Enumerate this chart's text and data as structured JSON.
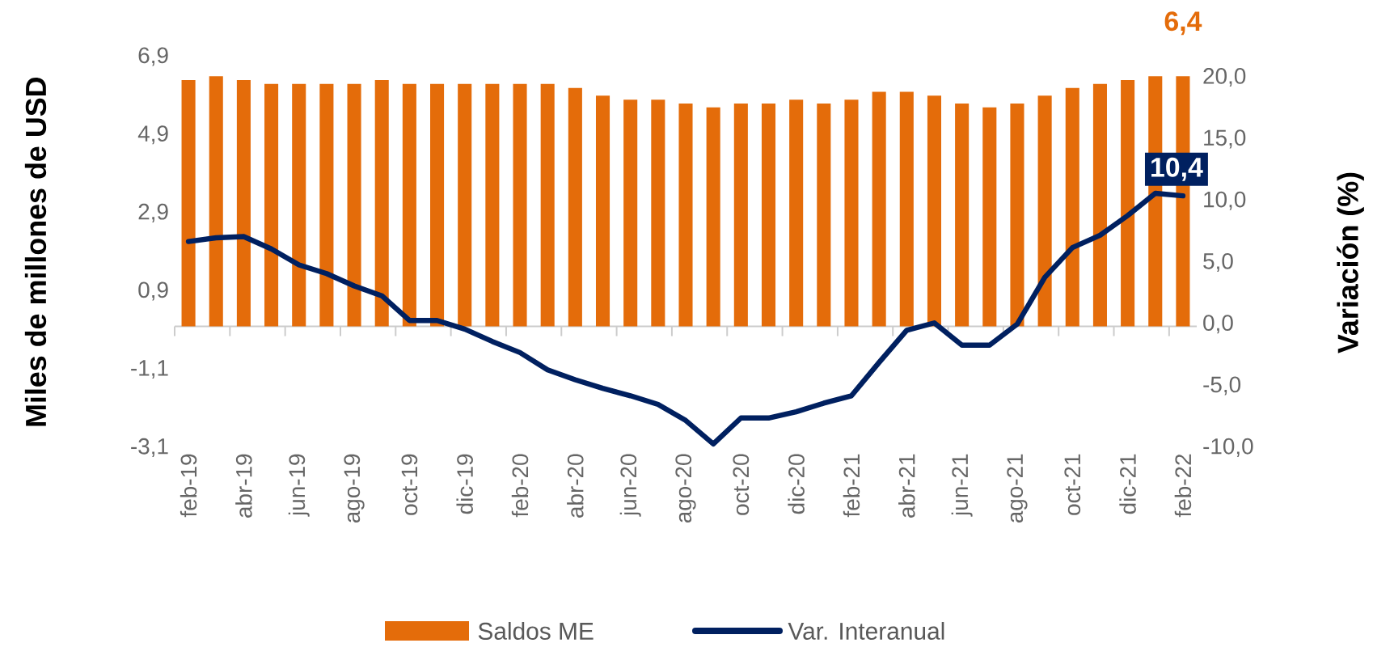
{
  "chart_data": {
    "type": "bar",
    "ylabel": "Miles de millones de USD",
    "y2label": "Variación (%)",
    "legend": "bottom",
    "categories": [
      "feb-19",
      null,
      "abr-19",
      null,
      "jun-19",
      null,
      "ago-19",
      null,
      "oct-19",
      null,
      "dic-19",
      null,
      "feb-20",
      null,
      "abr-20",
      null,
      "jun-20",
      null,
      "ago-20",
      null,
      "oct-20",
      null,
      "dic-20",
      null,
      "feb-21",
      null,
      "abr-21",
      null,
      "jun-21",
      null,
      "ago-21",
      null,
      "oct-21",
      null,
      "dic-21",
      null,
      "feb-22"
    ],
    "ylim": [
      -3.1,
      6.9
    ],
    "yticks": [
      {
        "value": -3.1,
        "label": "-3,1"
      },
      {
        "value": -1.1,
        "label": "-1,1"
      },
      {
        "value": 0.9,
        "label": "0,9"
      },
      {
        "value": 2.9,
        "label": "2,9"
      },
      {
        "value": 4.9,
        "label": "4,9"
      },
      {
        "value": 6.9,
        "label": "6,9"
      }
    ],
    "y2lim": [
      -10,
      20
    ],
    "y2ticks": [
      {
        "value": -10,
        "label": "-10,0"
      },
      {
        "value": -5,
        "label": "-5,0"
      },
      {
        "value": 0,
        "label": "0,0"
      },
      {
        "value": 5,
        "label": "5,0"
      },
      {
        "value": 10,
        "label": "10,0"
      },
      {
        "value": 15,
        "label": "15,0"
      },
      {
        "value": 20,
        "label": "20,0"
      }
    ],
    "series": [
      {
        "name": "Saldos ME",
        "type": "bar",
        "color": "#e46c0a",
        "values": [
          6.3,
          6.4,
          6.3,
          6.2,
          6.2,
          6.2,
          6.2,
          6.3,
          6.2,
          6.2,
          6.2,
          6.2,
          6.2,
          6.2,
          6.1,
          5.9,
          5.8,
          5.8,
          5.7,
          5.6,
          5.7,
          5.7,
          5.8,
          5.7,
          5.8,
          6.0,
          6.0,
          5.9,
          5.7,
          5.6,
          5.7,
          5.9,
          6.1,
          6.2,
          6.3,
          6.4,
          6.4
        ],
        "value_labels": [
          null,
          null,
          null,
          null,
          null,
          null,
          null,
          null,
          null,
          null,
          null,
          null,
          null,
          null,
          null,
          null,
          null,
          null,
          null,
          null,
          null,
          null,
          null,
          null,
          null,
          null,
          null,
          null,
          null,
          null,
          null,
          null,
          null,
          null,
          null,
          null,
          "6,4"
        ]
      },
      {
        "name": "Var. Interanual",
        "type": "line",
        "axis": "y2",
        "color": "#002060",
        "values": [
          6.7,
          7.0,
          7.1,
          6.1,
          4.8,
          4.1,
          3.1,
          2.3,
          0.3,
          0.3,
          -0.4,
          -1.4,
          -2.3,
          -3.7,
          -4.5,
          -5.2,
          -5.8,
          -6.5,
          -7.8,
          -9.7,
          -7.6,
          -7.6,
          -7.1,
          -6.4,
          -5.8,
          -3.1,
          -0.5,
          0.1,
          -1.7,
          -1.7,
          0.0,
          3.8,
          6.2,
          7.2,
          8.8,
          10.6,
          10.4
        ],
        "value_labels": [
          null,
          null,
          null,
          null,
          null,
          null,
          null,
          null,
          null,
          null,
          null,
          null,
          null,
          null,
          null,
          null,
          null,
          null,
          null,
          null,
          null,
          null,
          null,
          null,
          null,
          null,
          null,
          null,
          null,
          null,
          null,
          null,
          null,
          null,
          null,
          null,
          "10,4"
        ]
      }
    ]
  }
}
